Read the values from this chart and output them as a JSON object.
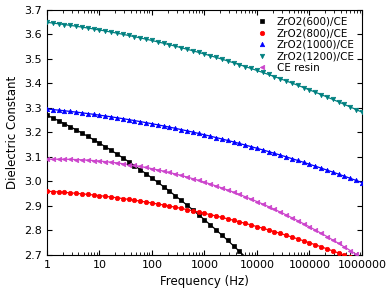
{
  "xlabel": "Frequency (Hz)",
  "ylabel": "Dielectric Constant",
  "ylim": [
    2.7,
    3.7
  ],
  "yticks": [
    2.7,
    2.8,
    2.9,
    3.0,
    3.1,
    3.2,
    3.3,
    3.4,
    3.5,
    3.6,
    3.7
  ],
  "series": [
    {
      "label": "ZrO2(600)/CE",
      "color": "#000000",
      "marker": "s",
      "a": 3.27,
      "b": -0.1,
      "c": -0.014
    },
    {
      "label": "ZrO2(800)/CE",
      "color": "#ff0000",
      "marker": "o",
      "a": 2.96,
      "b": -0.012,
      "c": -0.006
    },
    {
      "label": "ZrO2(1000)/CE",
      "color": "#0000ff",
      "marker": "^",
      "a": 3.295,
      "b": -0.02,
      "c": -0.005
    },
    {
      "label": "ZrO2(1200)/CE",
      "color": "#008080",
      "marker": "v",
      "a": 3.648,
      "b": -0.025,
      "c": -0.006
    },
    {
      "label": "CE resin",
      "color": "#cc44cc",
      "marker": "<",
      "a": 3.09,
      "b": 0.005,
      "c": -0.012
    }
  ]
}
